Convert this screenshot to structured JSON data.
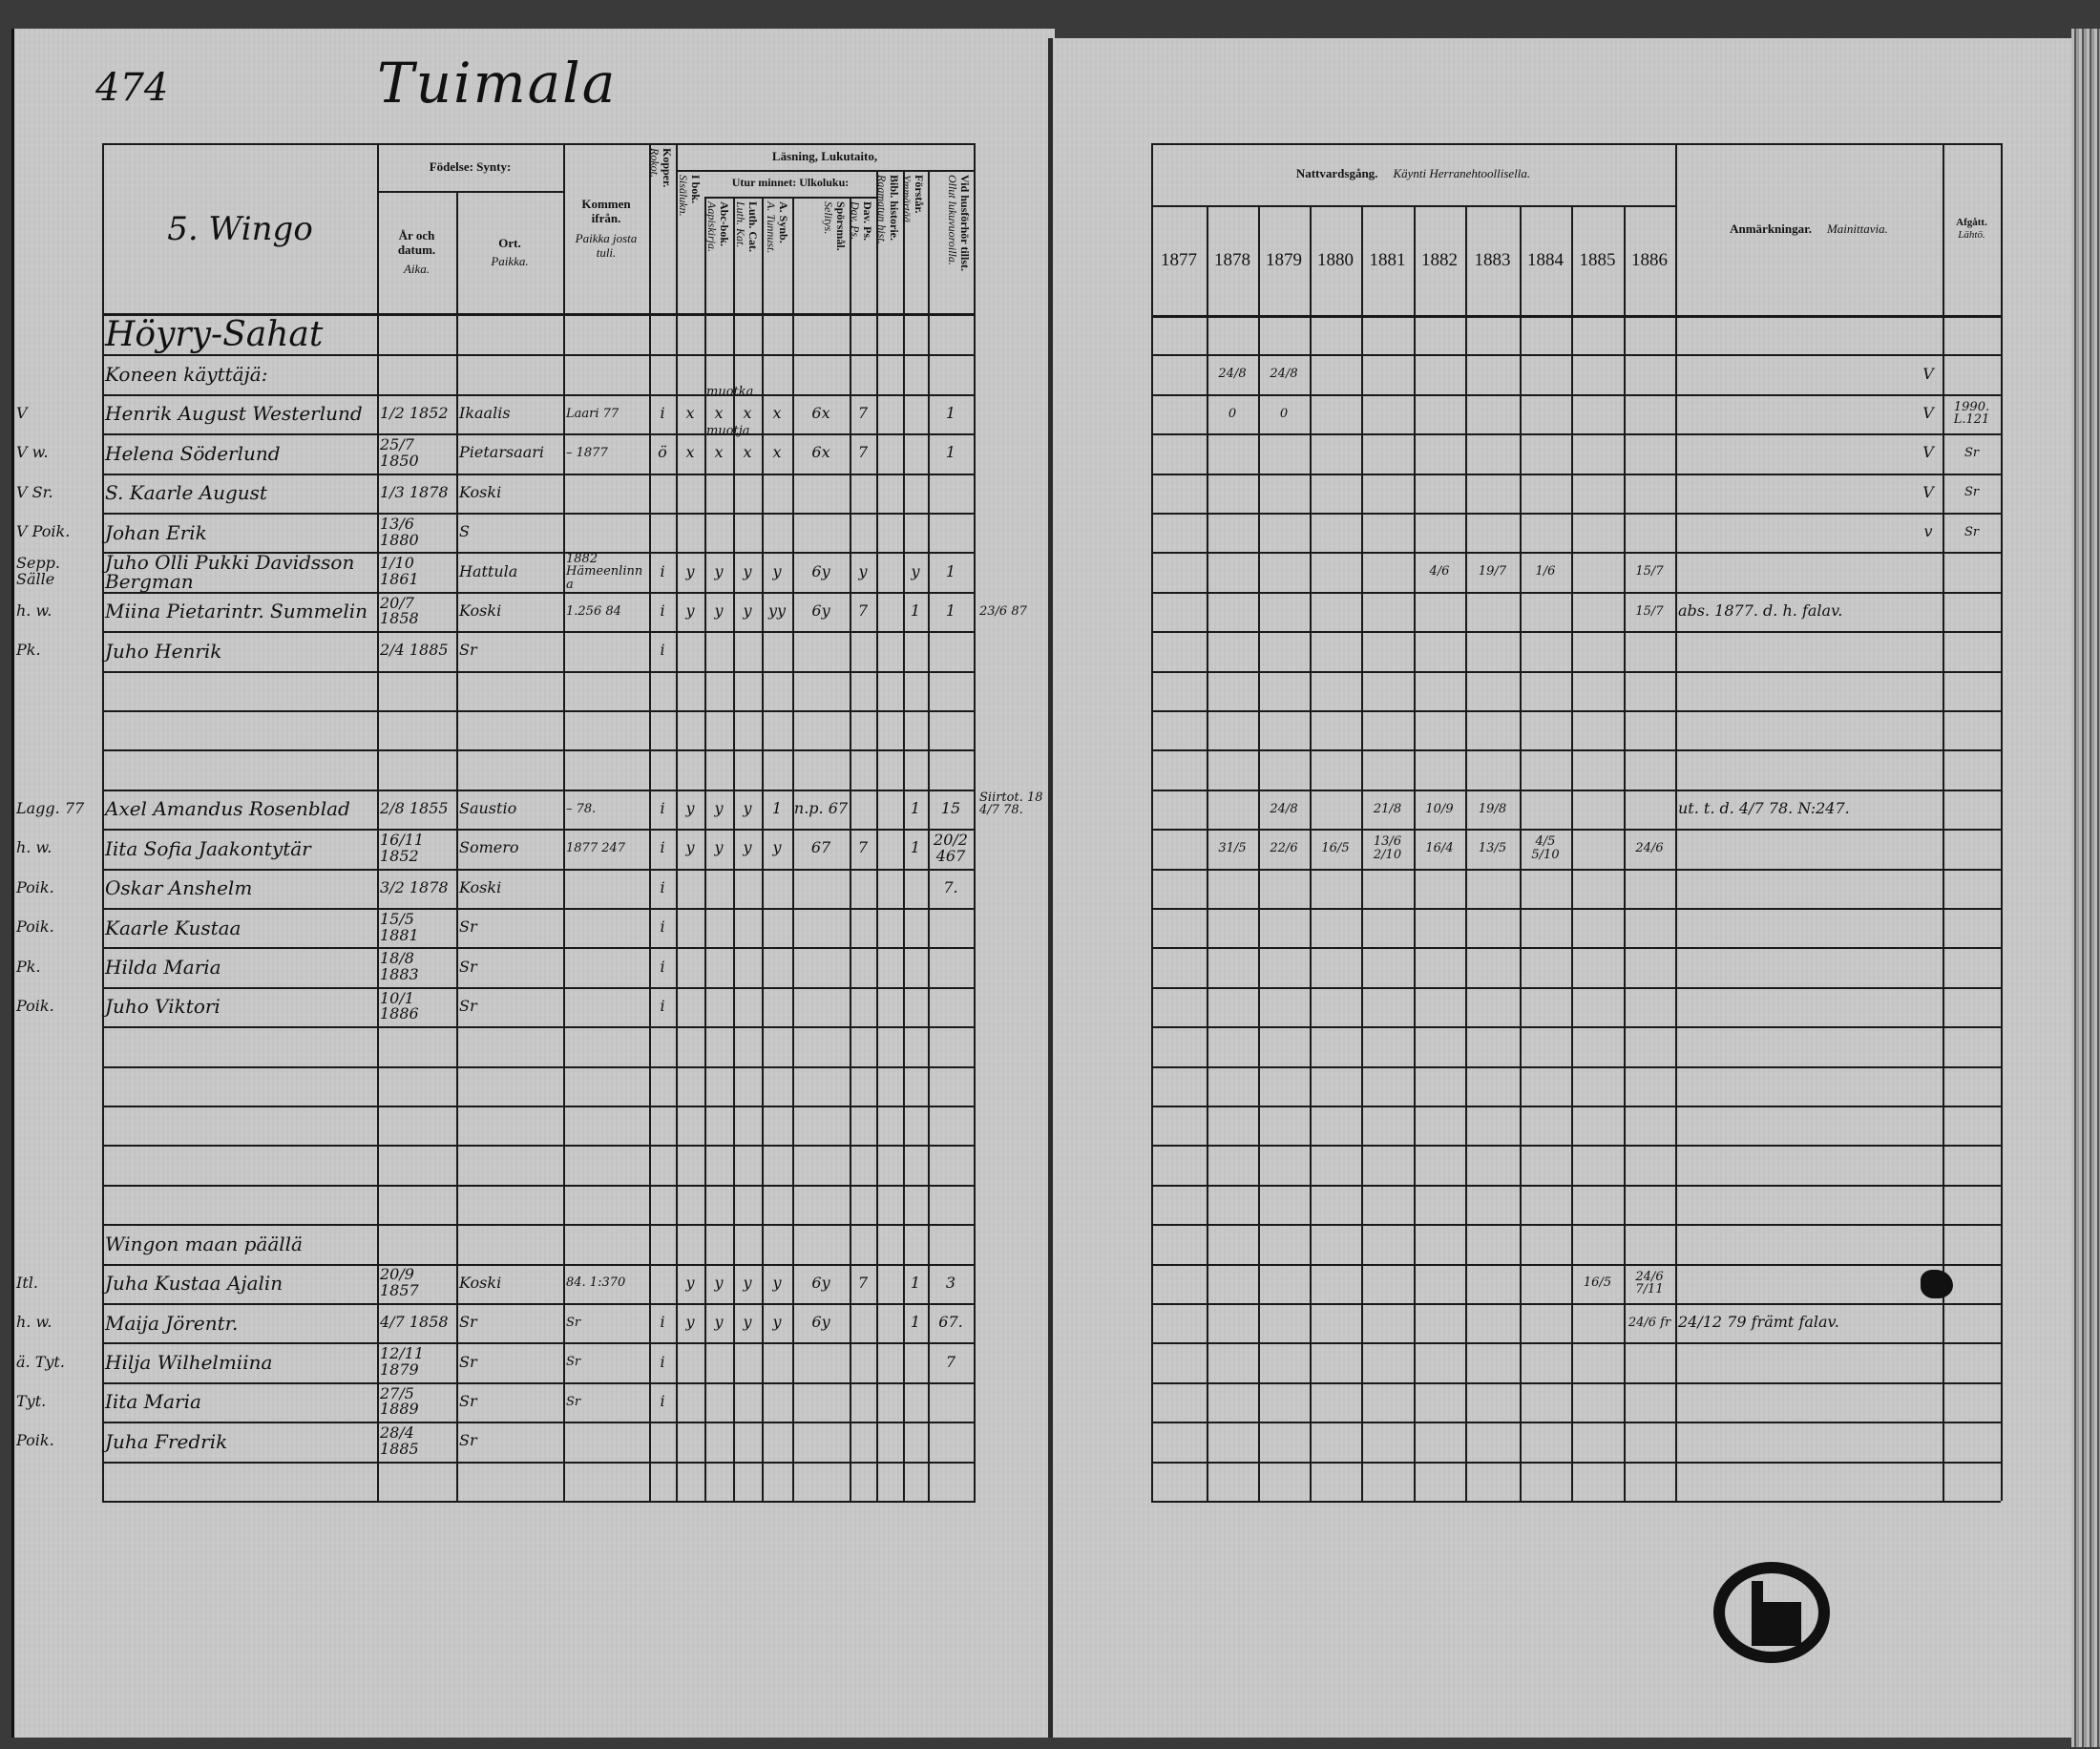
{
  "page_number": "474",
  "title": "Tuimala",
  "left_header": {
    "village": "5. Wingo",
    "birth": "Födelse: Synty:",
    "birth_date": "År och datum.",
    "birth_date_fi": "Aika.",
    "birth_place": "Ort.",
    "birth_place_fi": "Paikka.",
    "came_from": "Kommen ifrån.",
    "came_from_fi": "Paikka josta tuli.",
    "reading": "Läsning, Lukutaito,",
    "by_heart": "Utur minnet: Ulkoluku:",
    "columns": [
      [
        "Kopper.",
        "Rokot."
      ],
      [
        "I bok.",
        "Sisälukn."
      ],
      [
        "Abc-bok.",
        "Aapiskirja."
      ],
      [
        "Luth. Cat.",
        "Luth. Kat."
      ],
      [
        "A. Synb.",
        "A. Tunnust."
      ],
      [
        "Spörsmål.",
        "Selitys."
      ],
      [
        "Dav. Ps.",
        "Dav. Ps."
      ],
      [
        "Bibl. historie.",
        "Raamatun hist."
      ],
      [
        "Förstår.",
        "Ymmärtää."
      ],
      [
        "Vid husförhör tillst.",
        "Ollut lukuvuoroilla."
      ]
    ]
  },
  "right_header": {
    "communion": "Nattvardsgång.",
    "communion_fi": "Käynti Herranehtoollisella.",
    "years": [
      "1877",
      "1878",
      "1879",
      "1880",
      "1881",
      "1882",
      "1883",
      "1884",
      "1885",
      "1886"
    ],
    "remarks": "Anmärkningar.",
    "remarks_fi": "Mainittavia.",
    "departed": "Afgått.",
    "departed_fi": "Lähtö."
  },
  "rows": [
    {
      "name": "Höyry-Sahat"
    },
    {
      "name": "Koneen käyttäjä:",
      "communion": [
        "",
        "24/8",
        "24/8",
        "",
        "",
        "",
        "",
        "",
        "",
        ""
      ],
      "tick": "V"
    },
    {
      "margin": "V",
      "name": "Henrik August Westerlund",
      "date": "1/2 1852",
      "place": "Ikaalis",
      "from": "Laari 77",
      "marks": [
        "i",
        "x",
        "x",
        "x",
        "x",
        "6x",
        "7",
        "",
        "",
        "1"
      ],
      "note": "muotka",
      "communion": [
        "",
        "0",
        "0",
        "",
        "",
        "",
        "",
        "",
        "",
        ""
      ],
      "tick": "V",
      "departed": "1990. L.121"
    },
    {
      "margin": "V w.",
      "name": "Helena Söderlund",
      "date": "25/7 1850",
      "place": "Pietarsaari",
      "from": "– 1877",
      "marks": [
        "ö",
        "x",
        "x",
        "x",
        "x",
        "6x",
        "7",
        "",
        "",
        "1"
      ],
      "note": "muotja",
      "tick": "V",
      "departed": "Sr"
    },
    {
      "margin": "V Sr.",
      "name": "S. Kaarle August",
      "date": "1/3 1878",
      "place": "Koski",
      "tick": "V",
      "departed": "Sr"
    },
    {
      "margin": "V Poik.",
      "name": "Johan Erik",
      "date": "13/6 1880",
      "place": "S",
      "tick": "v",
      "departed": "Sr"
    },
    {
      "margin": "Sepp. Sälle",
      "name": "Juho Olli Pukki Davidsson Bergman",
      "date": "1/10 1861",
      "place": "Hattula",
      "from": "1882 Hämeenlinna",
      "marks": [
        "i",
        "y",
        "y",
        "y",
        "y",
        "6y",
        "y",
        "",
        "y",
        "1"
      ],
      "communion": [
        "",
        "",
        "",
        "",
        "",
        "4/6",
        "19/7",
        "1/6",
        "",
        "15/7"
      ]
    },
    {
      "margin": "h. w.",
      "name": "Miina Pietarintr. Summelin",
      "date": "20/7 1858",
      "place": "Koski",
      "from": "1.256 84",
      "marks": [
        "i",
        "y",
        "y",
        "y",
        "yy",
        "6y",
        "7",
        "",
        "1",
        "1"
      ],
      "note": "23/6 87",
      "communion": [
        "",
        "",
        "",
        "",
        "",
        "",
        "",
        "",
        "",
        "15/7"
      ],
      "remarks": "abs. 1877. d. h. falav."
    },
    {
      "margin": "Pk.",
      "name": "Juho Henrik",
      "date": "2/4 1885",
      "place": "Sr",
      "marks": [
        "i",
        "",
        "",
        "",
        "",
        "",
        "",
        "",
        "",
        ""
      ]
    },
    {},
    {},
    {},
    {
      "margin": "Lagg. 77",
      "name": "Axel Amandus Rosenblad",
      "date": "2/8 1855",
      "place": "Saustio",
      "from": "– 78.",
      "marks": [
        "i",
        "y",
        "y",
        "y",
        "1",
        "n.p. 67",
        "",
        "",
        "1",
        "15"
      ],
      "note": "Siirtot. 18 4/7 78.",
      "communion": [
        "",
        "",
        "24/8",
        "",
        "21/8",
        "10/9",
        "19/8",
        "",
        "",
        ""
      ],
      "remarks": "ut. t. d. 4/7 78. N:247."
    },
    {
      "margin": "h. w.",
      "name": "Iita Sofia Jaakontytär",
      "date": "16/11 1852",
      "place": "Somero",
      "from": "1877 247",
      "marks": [
        "i",
        "y",
        "y",
        "y",
        "y",
        "67",
        "7",
        "",
        "1",
        "20/2 467"
      ],
      "communion": [
        "",
        "31/5",
        "22/6",
        "16/5",
        "13/6 2/10",
        "16/4",
        "13/5",
        "4/5 5/10",
        "",
        "24/6"
      ]
    },
    {
      "margin": "Poik.",
      "name": "Oskar Anshelm",
      "date": "3/2 1878",
      "place": "Koski",
      "marks": [
        "i",
        "",
        "",
        "",
        "",
        "",
        "",
        "",
        "",
        "7."
      ]
    },
    {
      "margin": "Poik.",
      "name": "Kaarle Kustaa",
      "date": "15/5 1881",
      "place": "Sr",
      "marks": [
        "i",
        "",
        "",
        "",
        "",
        "",
        "",
        "",
        "",
        ""
      ]
    },
    {
      "margin": "Pk.",
      "name": "Hilda Maria",
      "date": "18/8 1883",
      "place": "Sr",
      "marks": [
        "i",
        "",
        "",
        "",
        "",
        "",
        "",
        "",
        "",
        ""
      ]
    },
    {
      "margin": "Poik.",
      "name": "Juho Viktori",
      "date": "10/1 1886",
      "place": "Sr",
      "marks": [
        "i",
        "",
        "",
        "",
        "",
        "",
        "",
        "",
        "",
        ""
      ]
    },
    {},
    {},
    {},
    {},
    {},
    {
      "name": "Wingon maan päällä"
    },
    {
      "margin": "Itl.",
      "name": "Juha Kustaa Ajalin",
      "date": "20/9 1857",
      "place": "Koski",
      "from": "84. 1:370",
      "marks": [
        "",
        "y",
        "y",
        "y",
        "y",
        "6y",
        "7",
        "",
        "1",
        "3"
      ],
      "communion": [
        "",
        "",
        "",
        "",
        "",
        "",
        "",
        "",
        "16/5",
        "24/6 7/11"
      ]
    },
    {
      "margin": "h. w.",
      "name": "Maija Jörentr.",
      "date": "4/7 1858",
      "place": "Sr",
      "from": "Sr",
      "marks": [
        "i",
        "y",
        "y",
        "y",
        "y",
        "6y",
        "",
        "",
        "1",
        "67."
      ],
      "communion": [
        "",
        "",
        "",
        "",
        "",
        "",
        "",
        "",
        "",
        "24/6 fr"
      ],
      "remarks": "24/12 79 främt falav."
    },
    {
      "margin": "ä. Tyt.",
      "name": "Hilja Wilhelmiina",
      "date": "12/11 1879",
      "place": "Sr",
      "from": "Sr",
      "marks": [
        "i",
        "",
        "",
        "",
        "",
        "",
        "",
        "",
        "",
        "7"
      ]
    },
    {
      "margin": "Tyt.",
      "name": "Iita Maria",
      "date": "27/5 1889",
      "place": "Sr",
      "from": "Sr",
      "marks": [
        "i",
        "",
        "",
        "",
        "",
        "",
        "",
        "",
        "",
        ""
      ]
    },
    {
      "margin": "Poik.",
      "name": "Juha Fredrik",
      "date": "28/4 1885",
      "place": "Sr"
    },
    {}
  ]
}
